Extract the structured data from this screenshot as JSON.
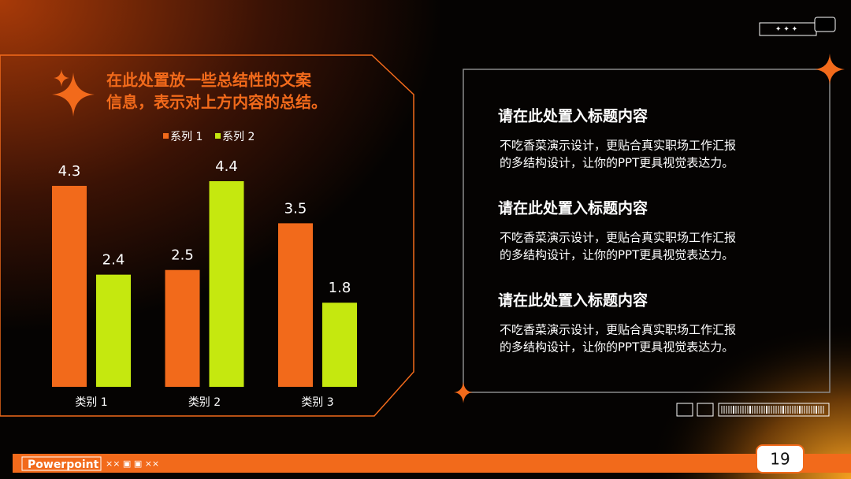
{
  "chart_data": {
    "type": "bar",
    "caption": [
      "在此处置放一些总结性的文案",
      "信息，表示对上方内容的总结。"
    ],
    "categories": [
      "类别 1",
      "类别 2",
      "类别 3"
    ],
    "series": [
      {
        "name": "系列 1",
        "color": "#f26a1b",
        "values": [
          4.3,
          2.5,
          3.5
        ]
      },
      {
        "name": "系列 2",
        "color": "#c5e80f",
        "values": [
          2.4,
          4.4,
          1.8
        ]
      }
    ]
  },
  "panel": [
    {
      "title": "请在此处置入标题内容",
      "body": [
        "不吃香菜演示设计，更贴合真实职场工作汇报",
        "的多结构设计，让你的PPT更具视觉表达力。"
      ]
    },
    {
      "title": "请在此处置入标题内容",
      "body": [
        "不吃香菜演示设计，更贴合真实职场工作汇报",
        "的多结构设计，让你的PPT更具视觉表达力。"
      ]
    },
    {
      "title": "请在此处置入标题内容",
      "body": [
        "不吃香菜演示设计，更贴合真实职场工作汇报",
        "的多结构设计，让你的PPT更具视觉表达力。"
      ]
    }
  ],
  "footer": {
    "brand": "Powerpoint",
    "page": "19"
  }
}
